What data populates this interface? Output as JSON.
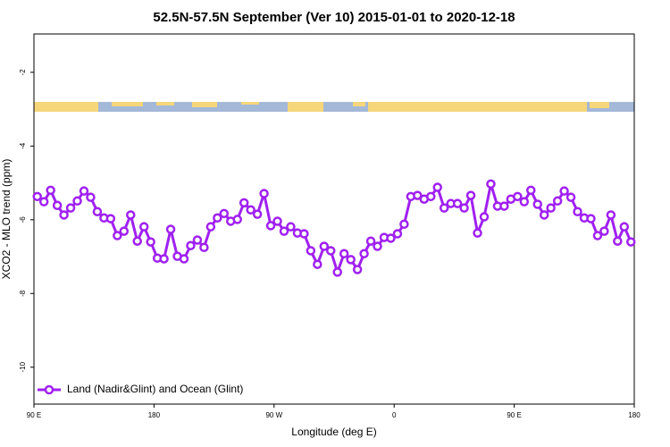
{
  "chart_data": {
    "type": "line",
    "title": "52.5N-57.5N September (Ver 10)   2015-01-01 to 2020-12-18",
    "x_label": "Longitude (deg E)",
    "y_label": "XCO2 - MLO trend (ppm)",
    "x": [
      92.5,
      97.5,
      102.5,
      107.5,
      112.5,
      117.5,
      122.5,
      127.5,
      132.5,
      137.5,
      142.5,
      147.5,
      152.5,
      157.5,
      162.5,
      167.5,
      172.5,
      177.5,
      182.5,
      187.5,
      192.5,
      197.5,
      202.5,
      207.5,
      212.5,
      217.5,
      222.5,
      227.5,
      232.5,
      237.5,
      242.5,
      247.5,
      252.5,
      257.5,
      262.5,
      267.5,
      272.5,
      277.5,
      282.5,
      287.5,
      292.5,
      297.5,
      302.5,
      307.5,
      312.5,
      317.5,
      322.5,
      327.5,
      332.5,
      337.5,
      342.5,
      347.5,
      352.5,
      357.5,
      362.5,
      367.5,
      372.5,
      377.5,
      382.5,
      387.5,
      392.5,
      397.5,
      402.5,
      407.5,
      412.5,
      417.5,
      422.5,
      427.5,
      432.5,
      437.5,
      442.5,
      447.5,
      452.5,
      457.5,
      462.5,
      467.5,
      472.5,
      477.5,
      482.5,
      487.5,
      492.5,
      497.5,
      502.5,
      507.5,
      512.5,
      517.5,
      522.5,
      527.5,
      532.5,
      537.5
    ],
    "series": [
      {
        "name": "Land (Nadir&Glint) and Ocean (Glint)",
        "color": "#a020f0",
        "values": [
          -5.37,
          -5.51,
          -5.2,
          -5.61,
          -5.87,
          -5.68,
          -5.49,
          -5.22,
          -5.39,
          -5.78,
          -5.95,
          -5.97,
          -6.43,
          -6.31,
          -5.87,
          -6.58,
          -6.19,
          -6.6,
          -7.04,
          -7.06,
          -6.26,
          -6.99,
          -7.06,
          -6.7,
          -6.55,
          -6.75,
          -6.19,
          -5.95,
          -5.83,
          -6.04,
          -5.99,
          -5.54,
          -5.73,
          -5.85,
          -5.29,
          -6.16,
          -6.04,
          -6.31,
          -6.19,
          -6.36,
          -6.38,
          -6.84,
          -7.21,
          -6.72,
          -6.84,
          -7.42,
          -6.92,
          -7.08,
          -7.35,
          -6.92,
          -6.58,
          -6.72,
          -6.48,
          -6.5,
          -6.38,
          -6.12,
          -5.37,
          -5.34,
          -5.44,
          -5.37,
          -5.12,
          -5.68,
          -5.56,
          -5.56,
          -5.68,
          -5.34,
          -6.36,
          -5.92,
          -5.03,
          -5.63,
          -5.63,
          -5.44,
          -5.37,
          -5.51,
          -5.2,
          -5.58,
          -5.87,
          -5.68,
          -5.49,
          -5.22,
          -5.39,
          -5.78,
          -5.95,
          -5.97,
          -6.43,
          -6.31,
          -5.87,
          -6.58,
          -6.19,
          -6.6
        ]
      }
    ],
    "xlim": [
      90,
      540
    ],
    "xticks": [
      {
        "value": 90,
        "label": "90 E"
      },
      180,
      {
        "value": 270,
        "label": "90 W"
      },
      {
        "value": 360,
        "label": "0"
      },
      {
        "value": 450,
        "label": "90 E"
      },
      180
    ],
    "ylim": [
      -11,
      -0.96
    ],
    "yticks": [
      -2,
      -4,
      -6,
      -8,
      -10
    ],
    "legend": "bottom-left"
  }
}
